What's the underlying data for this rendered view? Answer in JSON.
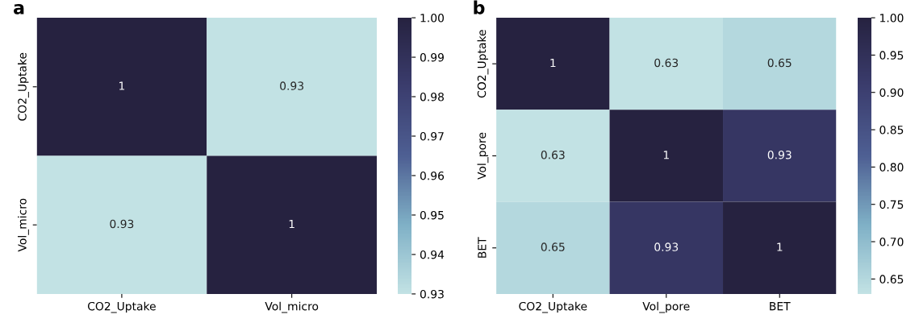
{
  "chart_data": [
    {
      "type": "heatmap",
      "title": "a",
      "categories": [
        "CO2_Uptake",
        "Vol_micro"
      ],
      "y_categories": [
        "CO2_Uptake",
        "Vol_micro"
      ],
      "cells": [
        [
          1,
          0.93
        ],
        [
          0.93,
          1
        ]
      ],
      "data_labels": true,
      "clim": [
        0.93,
        1.0
      ],
      "cticks": [
        {
          "value": 0.93,
          "label": "0.93"
        },
        {
          "value": 0.94,
          "label": "0.94"
        },
        {
          "value": 0.95,
          "label": "0.95"
        },
        {
          "value": 0.96,
          "label": "0.96"
        },
        {
          "value": 0.97,
          "label": "0.97"
        },
        {
          "value": 0.98,
          "label": "0.98"
        },
        {
          "value": 0.99,
          "label": "0.99"
        },
        {
          "value": 1.0,
          "label": "1.00"
        }
      ]
    },
    {
      "type": "heatmap",
      "title": "b",
      "categories": [
        "CO2_Uptake",
        "Vol_pore",
        "BET"
      ],
      "y_categories": [
        "CO2_Uptake",
        "Vol_pore",
        "BET"
      ],
      "cells": [
        [
          1,
          0.63,
          0.65
        ],
        [
          0.63,
          1,
          0.93
        ],
        [
          0.65,
          0.93,
          1
        ]
      ],
      "data_labels": true,
      "clim": [
        0.63,
        1.0
      ],
      "cticks": [
        {
          "value": 0.65,
          "label": "0.65"
        },
        {
          "value": 0.7,
          "label": "0.70"
        },
        {
          "value": 0.75,
          "label": "0.75"
        },
        {
          "value": 0.8,
          "label": "0.80"
        },
        {
          "value": 0.85,
          "label": "0.85"
        },
        {
          "value": 0.9,
          "label": "0.90"
        },
        {
          "value": 0.95,
          "label": "0.95"
        },
        {
          "value": 1.0,
          "label": "1.00"
        }
      ]
    }
  ]
}
